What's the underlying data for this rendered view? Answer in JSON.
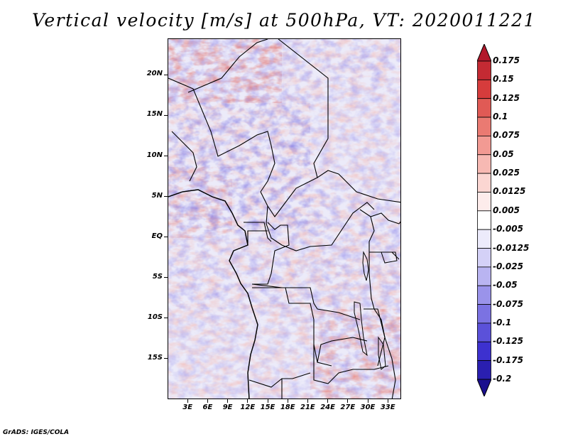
{
  "title": "Vertical velocity [m/s] at 500hPa, VT: 2020011221",
  "credit": "GrADS: IGES/COLA",
  "map": {
    "lon_range": [
      0,
      35
    ],
    "lat_range": [
      -20,
      24.5
    ],
    "y_ticks": [
      {
        "lat": 20,
        "label": "20N"
      },
      {
        "lat": 15,
        "label": "15N"
      },
      {
        "lat": 10,
        "label": "10N"
      },
      {
        "lat": 5,
        "label": "5N"
      },
      {
        "lat": 0,
        "label": "EQ"
      },
      {
        "lat": -5,
        "label": "5S"
      },
      {
        "lat": -10,
        "label": "10S"
      },
      {
        "lat": -15,
        "label": "15S"
      }
    ],
    "x_ticks": [
      {
        "lon": 3,
        "label": "3E"
      },
      {
        "lon": 6,
        "label": "6E"
      },
      {
        "lon": 9,
        "label": "9E"
      },
      {
        "lon": 12,
        "label": "12E"
      },
      {
        "lon": 15,
        "label": "15E"
      },
      {
        "lon": 18,
        "label": "18E"
      },
      {
        "lon": 21,
        "label": "21E"
      },
      {
        "lon": 24,
        "label": "24E"
      },
      {
        "lon": 27,
        "label": "27E"
      },
      {
        "lon": 30,
        "label": "30E"
      },
      {
        "lon": 33,
        "label": "33E"
      }
    ]
  },
  "colorbar": {
    "labels": [
      "0.175",
      "0.15",
      "0.125",
      "0.1",
      "0.075",
      "0.05",
      "0.025",
      "0.0125",
      "0.005",
      "-0.005",
      "-0.0125",
      "-0.025",
      "-0.05",
      "-0.075",
      "-0.1",
      "-0.125",
      "-0.175",
      "-0.2"
    ],
    "colors": [
      "#b2182b",
      "#c42a33",
      "#d63c3c",
      "#e05a55",
      "#ea7a72",
      "#f29a93",
      "#f7b9b3",
      "#fbd6d2",
      "#fdeceb",
      "#ffffff",
      "#ecebfb",
      "#d4d1f7",
      "#b9b4f1",
      "#9a93ea",
      "#7b72e2",
      "#5b51d9",
      "#3d31cf",
      "#2a1fb0",
      "#1a0f8e"
    ]
  }
}
